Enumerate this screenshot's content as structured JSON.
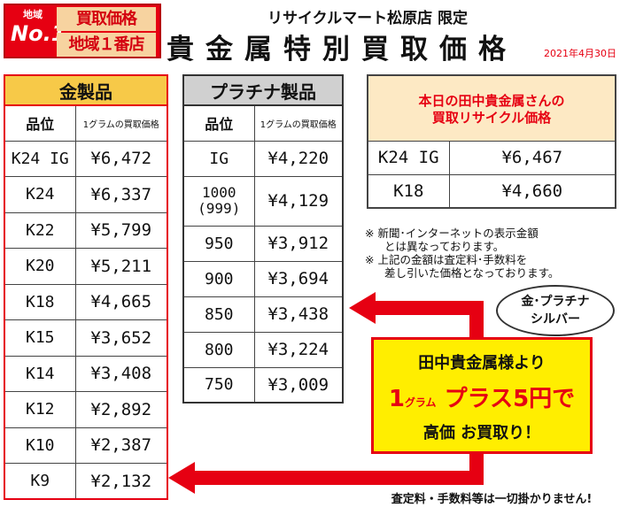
{
  "badge": {
    "region_label": "地域",
    "no1": "No.1",
    "line1": "買取価格",
    "line2": "地域１番店"
  },
  "header": {
    "store": "リサイクルマート松原店 限定",
    "title": "貴金属特別買取価格",
    "date": "2021年4月30日"
  },
  "gold": {
    "title": "金製品",
    "col_grade": "品位",
    "col_price": "1グラムの買取価格",
    "rows": [
      {
        "grade": "K24 IG",
        "price": "¥6,472"
      },
      {
        "grade": "K24",
        "price": "¥6,337"
      },
      {
        "grade": "K22",
        "price": "¥5,799"
      },
      {
        "grade": "K20",
        "price": "¥5,211"
      },
      {
        "grade": "K18",
        "price": "¥4,665"
      },
      {
        "grade": "K15",
        "price": "¥3,652"
      },
      {
        "grade": "K14",
        "price": "¥3,408"
      },
      {
        "grade": "K12",
        "price": "¥2,892"
      },
      {
        "grade": "K10",
        "price": "¥2,387"
      },
      {
        "grade": "K9",
        "price": "¥2,132"
      }
    ]
  },
  "platinum": {
    "title": "プラチナ製品",
    "col_grade": "品位",
    "col_price": "1グラムの買取価格",
    "rows": [
      {
        "grade": "IG",
        "price": "¥4,220"
      },
      {
        "grade": "1000",
        "grade_sub": "(999)",
        "price": "¥4,129"
      },
      {
        "grade": "950",
        "price": "¥3,912"
      },
      {
        "grade": "900",
        "price": "¥3,694"
      },
      {
        "grade": "850",
        "price": "¥3,438"
      },
      {
        "grade": "800",
        "price": "¥3,224"
      },
      {
        "grade": "750",
        "price": "¥3,009"
      }
    ]
  },
  "tanaka": {
    "title_line1": "本日の田中貴金属さんの",
    "title_line2": "買取リサイクル価格",
    "rows": [
      {
        "grade": "K24 IG",
        "price": "¥6,467"
      },
      {
        "grade": "K18",
        "price": "¥4,660"
      }
    ]
  },
  "notes": {
    "n1a": "※ 新聞･インターネットの表示金額",
    "n1b": "とは異なっております。",
    "n2a": "※ 上記の金額は査定料･手数料を",
    "n2b": "差し引いた価格となっております。"
  },
  "bubble": {
    "line1": "金･プラチナ",
    "line2": "シルバー"
  },
  "promo": {
    "line1": "田中貴金属様より",
    "num": "1",
    "unit": "グラム",
    "bonus": "プラス5円で",
    "line3": "高価 お買取り！"
  },
  "footer": "査定料・手数料等は一切掛かりません!",
  "colors": {
    "red": "#e60012",
    "gold_header": "#f7c948",
    "plat_header": "#d0d0d0",
    "promo_bg": "#ffee00",
    "tanaka_header": "#fde9c4"
  }
}
